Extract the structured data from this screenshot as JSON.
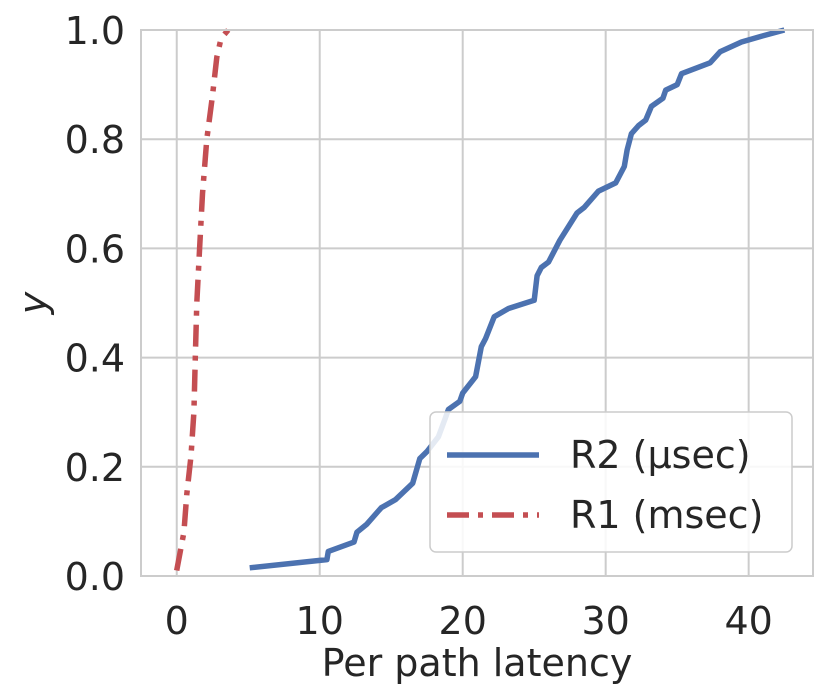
{
  "chart_data": {
    "type": "line",
    "title": "",
    "xlabel": "Per path latency",
    "ylabel": "y",
    "xlim": [
      -2.5,
      44.5
    ],
    "ylim": [
      0,
      1
    ],
    "xticks": [
      0,
      10,
      20,
      30,
      40
    ],
    "xtick_labels": [
      "0",
      "10",
      "20",
      "30",
      "40"
    ],
    "yticks": [
      0,
      0.2,
      0.4,
      0.6,
      0.8,
      1.0
    ],
    "ytick_labels": [
      "0.0",
      "0.2",
      "0.4",
      "0.6",
      "0.8",
      "1.0"
    ],
    "grid": true,
    "legend_position": "lower-right",
    "colors": {
      "grid": "#cccccc",
      "frame": "#cccccc"
    },
    "series": [
      {
        "name": "R2 (µsec)",
        "color": "#4c72b0",
        "style": "solid",
        "points": [
          [
            5.1,
            0.015
          ],
          [
            10.5,
            0.03
          ],
          [
            10.6,
            0.045
          ],
          [
            12.4,
            0.062
          ],
          [
            12.6,
            0.08
          ],
          [
            13.3,
            0.095
          ],
          [
            14.3,
            0.125
          ],
          [
            15.3,
            0.14
          ],
          [
            16.5,
            0.17
          ],
          [
            17.0,
            0.215
          ],
          [
            17.5,
            0.228
          ],
          [
            18.3,
            0.255
          ],
          [
            18.8,
            0.29
          ],
          [
            19.0,
            0.305
          ],
          [
            19.8,
            0.32
          ],
          [
            20.0,
            0.335
          ],
          [
            20.9,
            0.365
          ],
          [
            21.3,
            0.42
          ],
          [
            21.6,
            0.435
          ],
          [
            22.2,
            0.475
          ],
          [
            23.2,
            0.49
          ],
          [
            25.0,
            0.505
          ],
          [
            25.2,
            0.55
          ],
          [
            25.5,
            0.565
          ],
          [
            26.0,
            0.575
          ],
          [
            26.8,
            0.615
          ],
          [
            28.0,
            0.665
          ],
          [
            28.5,
            0.675
          ],
          [
            29.5,
            0.705
          ],
          [
            30.7,
            0.72
          ],
          [
            31.3,
            0.75
          ],
          [
            31.5,
            0.78
          ],
          [
            31.8,
            0.81
          ],
          [
            32.3,
            0.825
          ],
          [
            32.8,
            0.835
          ],
          [
            33.2,
            0.86
          ],
          [
            34.0,
            0.875
          ],
          [
            34.2,
            0.89
          ],
          [
            35.0,
            0.9
          ],
          [
            35.3,
            0.92
          ],
          [
            37.3,
            0.94
          ],
          [
            38.0,
            0.96
          ],
          [
            39.5,
            0.978
          ],
          [
            40.8,
            0.988
          ],
          [
            42.5,
            1.0
          ]
        ]
      },
      {
        "name": "R1 (msec)",
        "color": "#c44e52",
        "style": "dashdot",
        "points": [
          [
            0.0,
            0.01
          ],
          [
            0.5,
            0.08
          ],
          [
            0.7,
            0.15
          ],
          [
            1.0,
            0.22
          ],
          [
            1.2,
            0.3
          ],
          [
            1.3,
            0.4
          ],
          [
            1.4,
            0.5
          ],
          [
            1.6,
            0.6
          ],
          [
            1.8,
            0.7
          ],
          [
            2.1,
            0.8
          ],
          [
            2.5,
            0.88
          ],
          [
            2.8,
            0.95
          ],
          [
            3.1,
            0.985
          ],
          [
            3.6,
            1.0
          ]
        ]
      }
    ]
  }
}
